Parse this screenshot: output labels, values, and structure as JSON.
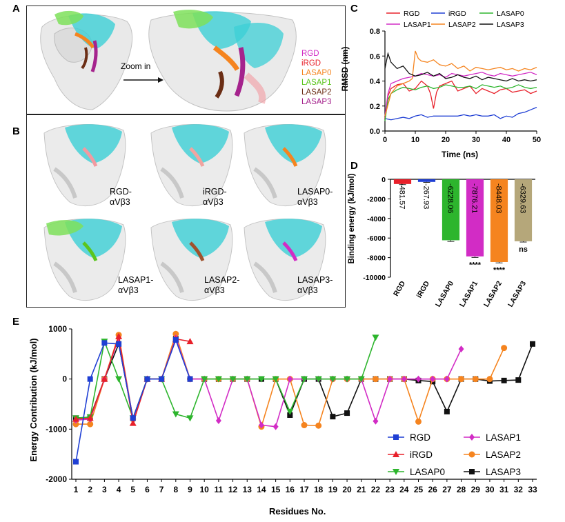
{
  "panels": {
    "a": "A",
    "b": "B",
    "c": "C",
    "d": "D",
    "e": "E"
  },
  "panel_a": {
    "zoom_label": "Zoom in",
    "legend": [
      {
        "name": "RGD",
        "color": "#d22cc5"
      },
      {
        "name": "iRGD",
        "color": "#e8202a"
      },
      {
        "name": "LASAP0",
        "color": "#f5841f"
      },
      {
        "name": "LASAP1",
        "color": "#5bc51d"
      },
      {
        "name": "LASAP2",
        "color": "#6b2e15"
      },
      {
        "name": "LASAP3",
        "color": "#a5238d"
      }
    ]
  },
  "panel_b": {
    "structures": [
      {
        "l1": "RGD-",
        "l2": "αVβ3",
        "highlight": "#f29aa0"
      },
      {
        "l1": "iRGD-",
        "l2": "αVβ3",
        "highlight": "#f0a4a0"
      },
      {
        "l1": "LASAP0-",
        "l2": "αVβ3",
        "highlight": "#f5841f"
      },
      {
        "l1": "LASAP1-",
        "l2": "αVβ3",
        "highlight": "#5bc51d"
      },
      {
        "l1": "LASAP2-",
        "l2": "αVβ3",
        "highlight": "#a0522d"
      },
      {
        "l1": "LASAP3-",
        "l2": "αVβ3",
        "highlight": "#d22cc5"
      }
    ]
  },
  "chart_data": [
    {
      "type": "line",
      "panel": "C",
      "xlabel": "Time (ns)",
      "ylabel": "RMSD (nm)",
      "xlim": [
        0,
        50
      ],
      "ylim": [
        0,
        0.8
      ],
      "xticks": [
        "0",
        "10",
        "20",
        "30",
        "40",
        "50"
      ],
      "yticks": [
        "0.0",
        "0.2",
        "0.4",
        "0.6",
        "0.8"
      ],
      "legend_position": "top",
      "series": [
        {
          "name": "RGD",
          "color": "#e8202a",
          "x": [
            0,
            1,
            2,
            4,
            6,
            8,
            10,
            12,
            14,
            15,
            16,
            17,
            18,
            20,
            22,
            24,
            26,
            28,
            30,
            32,
            34,
            36,
            38,
            40,
            42,
            44,
            46,
            48,
            50
          ],
          "y": [
            0.1,
            0.28,
            0.34,
            0.37,
            0.38,
            0.32,
            0.34,
            0.4,
            0.36,
            0.3,
            0.18,
            0.31,
            0.36,
            0.38,
            0.4,
            0.32,
            0.34,
            0.36,
            0.3,
            0.34,
            0.32,
            0.3,
            0.33,
            0.34,
            0.31,
            0.32,
            0.33,
            0.3,
            0.32
          ]
        },
        {
          "name": "iRGD",
          "color": "#1f3fd4",
          "x": [
            0,
            2,
            4,
            6,
            8,
            10,
            12,
            14,
            16,
            18,
            20,
            22,
            24,
            26,
            28,
            30,
            32,
            34,
            36,
            38,
            40,
            42,
            44,
            46,
            48,
            50
          ],
          "y": [
            0.1,
            0.09,
            0.1,
            0.11,
            0.1,
            0.12,
            0.13,
            0.11,
            0.12,
            0.12,
            0.12,
            0.12,
            0.12,
            0.13,
            0.12,
            0.13,
            0.12,
            0.12,
            0.13,
            0.1,
            0.12,
            0.11,
            0.14,
            0.15,
            0.17,
            0.19
          ]
        },
        {
          "name": "LASAP0",
          "color": "#2db52d",
          "x": [
            0,
            1,
            2,
            4,
            6,
            8,
            10,
            12,
            14,
            16,
            18,
            20,
            22,
            24,
            26,
            28,
            30,
            32,
            34,
            36,
            38,
            40,
            42,
            44,
            46,
            48,
            50
          ],
          "y": [
            0.08,
            0.25,
            0.3,
            0.33,
            0.35,
            0.34,
            0.33,
            0.35,
            0.36,
            0.34,
            0.35,
            0.37,
            0.36,
            0.35,
            0.35,
            0.36,
            0.34,
            0.37,
            0.36,
            0.35,
            0.36,
            0.34,
            0.35,
            0.37,
            0.35,
            0.34,
            0.35
          ]
        },
        {
          "name": "LASAP1",
          "color": "#d22cc5",
          "x": [
            0,
            1,
            2,
            4,
            6,
            8,
            10,
            12,
            14,
            16,
            18,
            20,
            22,
            24,
            26,
            28,
            30,
            32,
            34,
            36,
            38,
            40,
            42,
            44,
            46,
            48,
            50
          ],
          "y": [
            0.12,
            0.3,
            0.38,
            0.4,
            0.42,
            0.43,
            0.44,
            0.46,
            0.45,
            0.44,
            0.45,
            0.43,
            0.46,
            0.45,
            0.44,
            0.45,
            0.46,
            0.47,
            0.45,
            0.44,
            0.46,
            0.45,
            0.44,
            0.45,
            0.46,
            0.47,
            0.45
          ]
        },
        {
          "name": "LASAP2",
          "color": "#f5841f",
          "x": [
            0,
            2,
            4,
            6,
            8,
            9,
            10,
            11,
            12,
            14,
            16,
            18,
            20,
            22,
            24,
            26,
            28,
            30,
            32,
            34,
            36,
            38,
            40,
            42,
            44,
            46,
            48,
            50
          ],
          "y": [
            0.12,
            0.3,
            0.36,
            0.38,
            0.4,
            0.42,
            0.64,
            0.58,
            0.56,
            0.55,
            0.57,
            0.53,
            0.52,
            0.54,
            0.5,
            0.52,
            0.48,
            0.51,
            0.5,
            0.49,
            0.5,
            0.51,
            0.49,
            0.5,
            0.48,
            0.5,
            0.49,
            0.51
          ]
        },
        {
          "name": "LASAP3",
          "color": "#111111",
          "x": [
            0,
            1,
            2,
            4,
            6,
            8,
            10,
            12,
            14,
            16,
            18,
            20,
            22,
            24,
            26,
            28,
            30,
            32,
            34,
            36,
            38,
            40,
            42,
            44,
            46,
            48,
            50
          ],
          "y": [
            0.5,
            0.62,
            0.55,
            0.5,
            0.52,
            0.46,
            0.44,
            0.45,
            0.47,
            0.44,
            0.46,
            0.42,
            0.43,
            0.45,
            0.43,
            0.42,
            0.44,
            0.41,
            0.43,
            0.42,
            0.41,
            0.4,
            0.42,
            0.4,
            0.41,
            0.4,
            0.41
          ]
        }
      ]
    },
    {
      "type": "bar",
      "panel": "D",
      "ylabel": "Binding energy (kJ/mol)",
      "ylim": [
        -10000,
        0
      ],
      "yticks": [
        "0",
        "-2000",
        "-4000",
        "-6000",
        "-8000",
        "-10000"
      ],
      "categories": [
        "RGD",
        "iRGD",
        "LASAP0",
        "LASAP1",
        "LASAP2",
        "LASAP3"
      ],
      "values": [
        -481.57,
        -267.93,
        -6228.06,
        -7876.21,
        -8448.03,
        -6329.63
      ],
      "value_labels": [
        "-481.57",
        "-267.93",
        "-6228.06",
        "-7876.21",
        "-8448.03",
        "-6329.63"
      ],
      "errors": [
        60,
        50,
        120,
        110,
        90,
        80
      ],
      "colors": [
        "#e8202a",
        "#1f3fd4",
        "#2db52d",
        "#d22cc5",
        "#f5841f",
        "#b5a77a"
      ],
      "significance": [
        "",
        "",
        "",
        "****",
        "****",
        "ns"
      ]
    },
    {
      "type": "line",
      "panel": "E",
      "xlabel": "Residues No.",
      "ylabel": "Energy Contribution (kJ/mol)",
      "xlim": [
        1,
        33
      ],
      "ylim": [
        -2000,
        1000
      ],
      "yticks": [
        "1000",
        "0",
        "-1000",
        "-2000"
      ],
      "xticks": [
        "1",
        "2",
        "3",
        "4",
        "5",
        "6",
        "7",
        "8",
        "9",
        "10",
        "11",
        "12",
        "13",
        "14",
        "15",
        "16",
        "17",
        "18",
        "19",
        "20",
        "21",
        "22",
        "23",
        "24",
        "25",
        "26",
        "27",
        "28",
        "29",
        "30",
        "31",
        "32",
        "33"
      ],
      "legend_position": "bottom-right",
      "series": [
        {
          "name": "RGD",
          "color": "#1f3fd4",
          "marker": "square",
          "x": [
            1,
            2,
            3,
            4,
            5,
            6,
            7,
            8,
            9
          ],
          "y": [
            -1650,
            0,
            720,
            700,
            -780,
            0,
            0,
            780,
            0
          ]
        },
        {
          "name": "iRGD",
          "color": "#e8202a",
          "marker": "triangle-up",
          "x": [
            1,
            2,
            3,
            4,
            5,
            6,
            7,
            8,
            9
          ],
          "y": [
            -800,
            -780,
            0,
            850,
            -880,
            0,
            0,
            800,
            750
          ]
        },
        {
          "name": "LASAP0",
          "color": "#2db52d",
          "marker": "triangle-down",
          "x": [
            1,
            2,
            3,
            4,
            5,
            6,
            7,
            8,
            9,
            10,
            11,
            12,
            13,
            14,
            15,
            16,
            17,
            18,
            19,
            20,
            21,
            22
          ],
          "y": [
            -780,
            -760,
            750,
            0,
            -780,
            0,
            0,
            -700,
            -780,
            0,
            0,
            0,
            0,
            0,
            0,
            -650,
            0,
            0,
            0,
            0,
            0,
            830
          ]
        },
        {
          "name": "LASAP1",
          "color": "#d22cc5",
          "marker": "diamond",
          "x": [
            1,
            2,
            3,
            4,
            5,
            6,
            7,
            8,
            9,
            10,
            11,
            12,
            13,
            14,
            15,
            16,
            17,
            18,
            19,
            20,
            21,
            22,
            23,
            24,
            25,
            26,
            27,
            28
          ],
          "y": [
            -820,
            -800,
            0,
            820,
            -800,
            0,
            0,
            820,
            0,
            0,
            -830,
            0,
            0,
            -920,
            -950,
            0,
            0,
            0,
            0,
            0,
            0,
            -840,
            0,
            0,
            0,
            0,
            0,
            600
          ]
        },
        {
          "name": "LASAP2",
          "color": "#f5841f",
          "marker": "circle",
          "x": [
            1,
            2,
            3,
            4,
            5,
            6,
            7,
            8,
            9,
            10,
            11,
            12,
            13,
            14,
            15,
            16,
            17,
            18,
            19,
            20,
            21,
            22,
            23,
            24,
            25,
            26,
            27,
            28,
            29,
            30,
            31
          ],
          "y": [
            -900,
            -900,
            0,
            880,
            -800,
            0,
            0,
            900,
            0,
            0,
            0,
            0,
            0,
            -950,
            0,
            0,
            -920,
            -930,
            0,
            0,
            0,
            0,
            0,
            0,
            -850,
            0,
            0,
            0,
            0,
            0,
            620
          ]
        },
        {
          "name": "LASAP3",
          "color": "#111111",
          "marker": "square",
          "x": [
            1,
            2,
            3,
            4,
            5,
            6,
            7,
            8,
            9,
            10,
            11,
            12,
            13,
            14,
            15,
            16,
            17,
            18,
            19,
            20,
            21,
            22,
            23,
            24,
            25,
            26,
            27,
            28,
            29,
            30,
            31,
            32,
            33
          ],
          "y": [
            -780,
            -760,
            0,
            700,
            -780,
            0,
            0,
            800,
            0,
            0,
            0,
            0,
            0,
            0,
            0,
            -720,
            0,
            0,
            -750,
            -680,
            0,
            0,
            0,
            0,
            -30,
            -50,
            -650,
            0,
            0,
            -40,
            -30,
            -20,
            700
          ]
        }
      ]
    }
  ]
}
